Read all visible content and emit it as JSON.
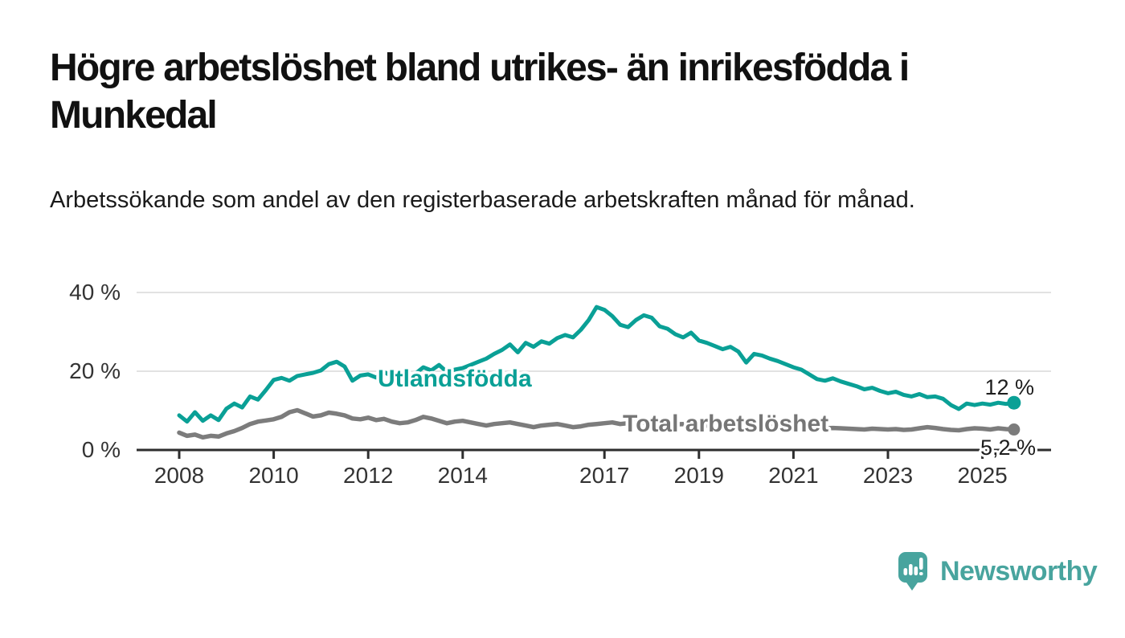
{
  "header": {
    "title": "Högre arbetslöshet bland utrikes- än inrikesfödda i Munkedal",
    "subtitle": "Arbetssökande som andel av den registerbaserade arbetskraften månad för månad."
  },
  "footer": {
    "brand": "Newsworthy",
    "logo_icon": "bar-chart-speech-bubble-icon"
  },
  "colors": {
    "series_utlandsfodda": "#0aa096",
    "series_total": "#7c7c7c",
    "axis": "#2e2e2e",
    "gridline": "#d9d9d9",
    "axis_label": "#333333",
    "value_label": "#1d1d1d",
    "logo_teal": "#48a49e"
  },
  "chart_data": {
    "type": "line",
    "x_unit": "year_decimal_monthly",
    "x_start": 2008.0,
    "x_step_years": 0.16667,
    "x_end": 2025.67,
    "ylim": [
      0,
      44
    ],
    "grid": "horizontal",
    "y_ticks": [
      {
        "value": 0,
        "label": "0 %"
      },
      {
        "value": 20,
        "label": "20 %"
      },
      {
        "value": 40,
        "label": "40 %"
      }
    ],
    "x_ticks": [
      {
        "value": 2008,
        "label": "2008"
      },
      {
        "value": 2010,
        "label": "2010"
      },
      {
        "value": 2012,
        "label": "2012"
      },
      {
        "value": 2014,
        "label": "2014"
      },
      {
        "value": 2017,
        "label": "2017"
      },
      {
        "value": 2019,
        "label": "2019"
      },
      {
        "value": 2021,
        "label": "2021"
      },
      {
        "value": 2023,
        "label": "2023"
      },
      {
        "value": 2025,
        "label": "2025"
      }
    ],
    "series": [
      {
        "name": "Utlandsfödda",
        "color": "#0aa096",
        "end_label": "12 %",
        "end_value": 12.0,
        "values": [
          8.8,
          7.2,
          9.6,
          7.4,
          8.8,
          7.6,
          10.5,
          11.8,
          10.8,
          13.6,
          12.8,
          15.2,
          17.8,
          18.3,
          17.6,
          18.8,
          19.2,
          19.6,
          20.2,
          21.8,
          22.4,
          21.2,
          17.6,
          18.9,
          19.2,
          18.4,
          19.8,
          18.8,
          17.8,
          18.6,
          19.4,
          21.0,
          20.2,
          21.6,
          19.8,
          20.4,
          20.8,
          21.6,
          22.4,
          23.2,
          24.4,
          25.4,
          26.8,
          24.8,
          27.2,
          26.2,
          27.6,
          27.0,
          28.4,
          29.2,
          28.6,
          30.5,
          33.0,
          36.3,
          35.6,
          34.0,
          31.8,
          31.2,
          33.0,
          34.2,
          33.6,
          31.4,
          30.8,
          29.4,
          28.6,
          29.8,
          27.8,
          27.2,
          26.4,
          25.6,
          26.2,
          25.0,
          22.2,
          24.4,
          24.0,
          23.2,
          22.6,
          21.8,
          21.0,
          20.4,
          19.2,
          18.0,
          17.6,
          18.2,
          17.4,
          16.8,
          16.2,
          15.4,
          15.8,
          15.0,
          14.4,
          14.8,
          14.0,
          13.6,
          14.2,
          13.4,
          13.6,
          13.0,
          11.4,
          10.4,
          11.8,
          11.4,
          11.8,
          11.5,
          12.0,
          11.7,
          12.0
        ]
      },
      {
        "name": "Total arbetslöshet",
        "color": "#7c7c7c",
        "end_label": "5,2 %",
        "end_value": 5.2,
        "values": [
          4.4,
          3.6,
          3.9,
          3.2,
          3.6,
          3.4,
          4.2,
          4.8,
          5.6,
          6.6,
          7.2,
          7.5,
          7.8,
          8.4,
          9.6,
          10.1,
          9.3,
          8.5,
          8.8,
          9.5,
          9.2,
          8.8,
          8.0,
          7.8,
          8.2,
          7.6,
          7.9,
          7.2,
          6.8,
          7.0,
          7.6,
          8.4,
          8.0,
          7.4,
          6.8,
          7.2,
          7.4,
          7.0,
          6.6,
          6.2,
          6.6,
          6.8,
          7.0,
          6.6,
          6.2,
          5.8,
          6.2,
          6.4,
          6.6,
          6.2,
          5.8,
          6.0,
          6.4,
          6.6,
          6.8,
          7.0,
          6.6,
          6.8,
          7.0,
          6.9,
          6.8,
          6.6,
          6.4,
          6.5,
          6.6,
          6.4,
          6.3,
          6.2,
          6.0,
          6.1,
          6.2,
          6.0,
          6.5,
          7.0,
          6.8,
          6.6,
          6.4,
          6.2,
          6.0,
          5.8,
          5.7,
          5.6,
          5.5,
          5.6,
          5.5,
          5.4,
          5.3,
          5.2,
          5.4,
          5.3,
          5.2,
          5.3,
          5.1,
          5.2,
          5.5,
          5.8,
          5.6,
          5.3,
          5.1,
          5.0,
          5.3,
          5.5,
          5.4,
          5.2,
          5.5,
          5.3,
          5.2
        ]
      }
    ]
  }
}
